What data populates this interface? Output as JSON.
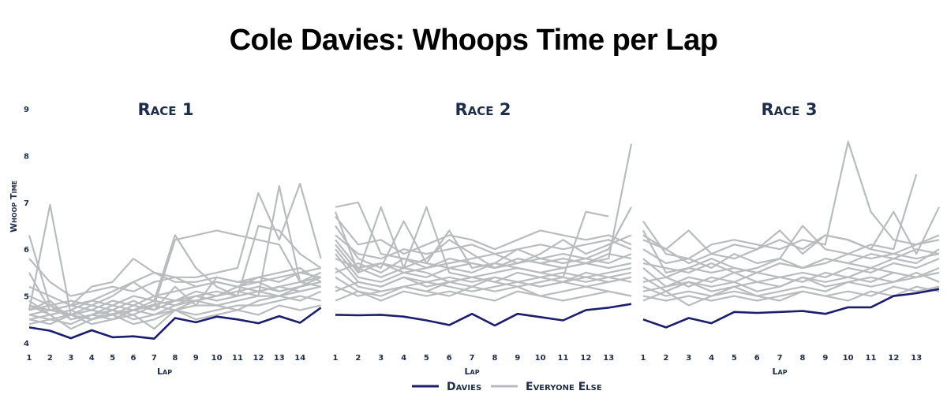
{
  "title": "Cole Davies: Whoops Time per Lap",
  "colors": {
    "davies": "#1b1e6e",
    "others": "#b9bcbf",
    "text": "#1e2d4a"
  },
  "legend": {
    "davies": "Davies",
    "others": "Everyone Else"
  },
  "chart_data": [
    {
      "type": "line",
      "title": "Race 1",
      "xlabel": "Lap",
      "ylabel": "Whoop Time",
      "ylim": [
        4,
        9
      ],
      "yticks": [
        4,
        5,
        6,
        7,
        8,
        9
      ],
      "x_ticks": [
        "1",
        "2",
        "3",
        "4",
        "5",
        "6",
        "7",
        "8",
        "9",
        "10",
        "11",
        "12",
        "13",
        "14"
      ],
      "davies": [
        4.33,
        4.26,
        4.1,
        4.27,
        4.12,
        4.14,
        4.09,
        4.53,
        4.44,
        4.56,
        4.5,
        4.42,
        4.57,
        4.43,
        4.75
      ],
      "others": [
        [
          4.7,
          6.95,
          4.6,
          4.5,
          4.62,
          4.7,
          4.82,
          4.9,
          4.9,
          5.0,
          5.1,
          5.0,
          7.35,
          5.3,
          5.4
        ],
        [
          6.3,
          4.8,
          4.5,
          4.6,
          4.7,
          4.6,
          4.8,
          6.2,
          6.3,
          6.4,
          6.3,
          6.2,
          6.1,
          5.3,
          5.5
        ],
        [
          5.8,
          5.3,
          5.0,
          5.1,
          5.2,
          5.1,
          5.3,
          5.4,
          5.4,
          5.5,
          5.6,
          7.2,
          6.2,
          7.4,
          5.8
        ],
        [
          5.2,
          5.0,
          4.8,
          4.9,
          4.8,
          5.0,
          4.9,
          6.3,
          5.6,
          5.2,
          5.0,
          6.5,
          6.4,
          5.9,
          5.6
        ],
        [
          4.6,
          4.5,
          4.4,
          4.6,
          4.5,
          4.7,
          4.6,
          4.8,
          4.9,
          5.0,
          5.1,
          5.2,
          5.1,
          5.2,
          5.3
        ],
        [
          4.5,
          4.6,
          4.3,
          4.5,
          4.7,
          4.5,
          4.6,
          4.7,
          4.8,
          4.8,
          4.9,
          5.0,
          5.0,
          4.9,
          5.1
        ],
        [
          4.8,
          4.7,
          4.6,
          4.7,
          4.6,
          4.8,
          4.7,
          4.9,
          5.0,
          4.9,
          5.0,
          5.1,
          5.2,
          5.1,
          5.2
        ],
        [
          4.9,
          4.6,
          4.7,
          4.5,
          4.6,
          4.4,
          4.5,
          4.7,
          4.6,
          4.7,
          4.8,
          4.8,
          4.9,
          5.0,
          4.9
        ],
        [
          4.4,
          4.5,
          4.6,
          4.4,
          4.5,
          4.6,
          4.3,
          4.7,
          4.5,
          4.6,
          4.7,
          4.6,
          4.8,
          4.7,
          4.8
        ],
        [
          5.0,
          4.8,
          4.9,
          4.8,
          5.0,
          5.3,
          5.0,
          5.1,
          5.2,
          5.3,
          5.2,
          5.4,
          5.3,
          5.5,
          5.4
        ],
        [
          4.7,
          4.9,
          4.5,
          4.6,
          4.8,
          4.7,
          4.9,
          4.8,
          5.0,
          5.1,
          5.0,
          5.1,
          5.2,
          5.3,
          5.2
        ],
        [
          4.6,
          4.7,
          4.8,
          4.7,
          4.9,
          4.8,
          5.0,
          4.9,
          5.1,
          5.0,
          5.2,
          5.1,
          5.0,
          5.2,
          5.3
        ],
        [
          4.5,
          4.4,
          4.6,
          4.8,
          4.7,
          4.9,
          4.7,
          5.2,
          4.8,
          5.4,
          5.3,
          5.3,
          5.4,
          5.5,
          5.6
        ],
        [
          4.8,
          4.6,
          4.7,
          4.9,
          5.1,
          5.3,
          5.5,
          5.4,
          5.2,
          5.3,
          5.2,
          5.3,
          5.1,
          5.2,
          5.4
        ],
        [
          5.5,
          4.7,
          4.8,
          5.2,
          5.3,
          5.8,
          5.5,
          5.3,
          5.3,
          5.4,
          5.3,
          5.4,
          5.5,
          5.6,
          5.3
        ],
        [
          4.7,
          4.8,
          4.6,
          4.7,
          4.6,
          4.7,
          4.8,
          4.7,
          4.9,
          4.8,
          4.7,
          4.9,
          5.0,
          5.1,
          5.2
        ]
      ]
    },
    {
      "type": "line",
      "title": "Race 2",
      "xlabel": "Lap",
      "ylabel": "Whoop Time",
      "ylim": [
        4,
        9
      ],
      "x_ticks": [
        "1",
        "2",
        "3",
        "4",
        "5",
        "6",
        "7",
        "8",
        "9",
        "10",
        "11",
        "12",
        "13"
      ],
      "davies": [
        4.6,
        4.59,
        4.6,
        4.56,
        4.48,
        4.38,
        4.62,
        4.37,
        4.62,
        4.55,
        4.48,
        4.7,
        4.75,
        4.83
      ],
      "others": [
        [
          6.9,
          7.0,
          5.9,
          5.8,
          5.7,
          5.6,
          5.7,
          5.6,
          5.8,
          5.7,
          5.6,
          5.7,
          5.8,
          8.25
        ],
        [
          6.8,
          5.5,
          6.9,
          5.6,
          6.9,
          5.5,
          5.4,
          5.5,
          5.6,
          5.5,
          5.4,
          6.8,
          6.7
        ],
        [
          6.5,
          5.8,
          5.6,
          6.6,
          5.7,
          6.4,
          5.6,
          5.7,
          6.0,
          5.8,
          5.7,
          5.8,
          6.0,
          6.9
        ],
        [
          6.2,
          5.6,
          5.4,
          5.6,
          5.5,
          5.3,
          5.4,
          5.3,
          5.2,
          5.3,
          5.4,
          5.3,
          5.4,
          5.3
        ],
        [
          5.9,
          5.3,
          5.2,
          5.4,
          5.3,
          5.4,
          5.3,
          5.4,
          5.3,
          5.2,
          5.3,
          5.4,
          5.3,
          5.4
        ],
        [
          5.6,
          5.2,
          5.1,
          5.2,
          5.1,
          5.0,
          5.2,
          5.1,
          5.2,
          5.0,
          5.1,
          5.2,
          5.1,
          5.0
        ],
        [
          5.4,
          5.1,
          4.9,
          5.1,
          5.0,
          5.1,
          5.0,
          4.9,
          5.1,
          5.0,
          4.9,
          5.0,
          5.1,
          5.0
        ],
        [
          6.0,
          5.4,
          5.3,
          5.5,
          5.4,
          5.6,
          5.5,
          5.7,
          5.6,
          5.5,
          5.6,
          5.7,
          5.6,
          5.7
        ],
        [
          5.8,
          5.6,
          5.7,
          5.5,
          5.6,
          5.8,
          5.7,
          5.6,
          5.8,
          5.7,
          5.8,
          5.7,
          5.9,
          5.8
        ],
        [
          6.3,
          5.9,
          5.8,
          6.0,
          5.9,
          6.0,
          6.1,
          5.9,
          6.0,
          6.1,
          6.0,
          6.1,
          6.2,
          6.0
        ],
        [
          5.2,
          5.0,
          5.1,
          5.2,
          5.3,
          5.2,
          5.1,
          5.2,
          5.3,
          5.2,
          5.3,
          5.2,
          5.3,
          5.4
        ],
        [
          4.9,
          5.1,
          5.0,
          5.2,
          5.1,
          5.3,
          5.2,
          5.4,
          5.3,
          5.4,
          5.5,
          5.4,
          5.5,
          5.6
        ],
        [
          6.7,
          6.1,
          6.2,
          5.9,
          6.1,
          6.3,
          6.2,
          6.0,
          6.2,
          6.4,
          6.3,
          6.2,
          6.3,
          6.1
        ],
        [
          5.5,
          5.7,
          5.5,
          5.8,
          5.6,
          5.7,
          5.8,
          5.9,
          5.7,
          5.8,
          5.9,
          5.8,
          5.7,
          5.9
        ],
        [
          5.1,
          5.3,
          5.2,
          5.4,
          5.2,
          5.3,
          5.4,
          5.3,
          5.5,
          5.4,
          5.3,
          5.5,
          5.4,
          5.5
        ],
        [
          6.1,
          5.5,
          5.7,
          5.6,
          5.8,
          6.2,
          5.9,
          5.6,
          5.7,
          5.9,
          6.2,
          5.9,
          6.1,
          6.3
        ]
      ]
    },
    {
      "type": "line",
      "title": "Race 3",
      "xlabel": "Lap",
      "ylabel": "Whoop Time",
      "ylim": [
        4,
        9
      ],
      "x_ticks": [
        "1",
        "2",
        "3",
        "4",
        "5",
        "6",
        "7",
        "8",
        "9",
        "10",
        "11",
        "12",
        "13"
      ],
      "davies": [
        4.5,
        4.33,
        4.53,
        4.42,
        4.66,
        4.64,
        4.66,
        4.68,
        4.62,
        4.76,
        4.76,
        5.0,
        5.06,
        5.15
      ],
      "others": [
        [
          6.6,
          5.9,
          5.8,
          6.1,
          6.2,
          6.1,
          6.0,
          6.2,
          6.1,
          8.3,
          6.8,
          6.2,
          6.1,
          6.3
        ],
        [
          6.3,
          6.0,
          6.4,
          5.9,
          6.1,
          6.0,
          6.2,
          6.0,
          6.3,
          6.2,
          6.0,
          6.8,
          5.9,
          6.9
        ],
        [
          6.0,
          5.7,
          5.8,
          5.6,
          5.9,
          5.7,
          5.8,
          6.5,
          6.0,
          5.9,
          6.1,
          6.0,
          7.6
        ],
        [
          5.8,
          5.4,
          5.6,
          5.5,
          5.6,
          5.5,
          5.7,
          5.6,
          5.8,
          5.7,
          5.9,
          5.8,
          6.0,
          5.9
        ],
        [
          5.6,
          5.2,
          5.4,
          5.3,
          5.5,
          5.3,
          5.4,
          5.5,
          5.4,
          5.6,
          5.5,
          5.7,
          5.6,
          5.8
        ],
        [
          5.4,
          5.1,
          5.3,
          5.2,
          5.3,
          5.1,
          5.2,
          5.4,
          5.3,
          5.4,
          5.3,
          5.5,
          5.4,
          5.6
        ],
        [
          5.2,
          5.0,
          5.1,
          5.0,
          5.2,
          5.0,
          5.1,
          5.2,
          5.1,
          5.3,
          5.2,
          5.3,
          5.4,
          5.5
        ],
        [
          5.0,
          4.9,
          5.0,
          4.9,
          5.0,
          4.9,
          5.0,
          5.1,
          5.0,
          5.1,
          5.0,
          5.2,
          5.1,
          5.2
        ],
        [
          6.4,
          5.5,
          5.6,
          5.8,
          5.6,
          5.5,
          5.7,
          5.6,
          5.8,
          5.7,
          5.6,
          5.8,
          5.7,
          6.0
        ],
        [
          5.7,
          5.6,
          5.5,
          5.7,
          5.5,
          5.6,
          5.8,
          5.6,
          5.7,
          5.9,
          5.8,
          5.9,
          5.8,
          5.9
        ],
        [
          5.3,
          5.4,
          5.2,
          5.4,
          5.3,
          5.5,
          5.4,
          5.3,
          5.5,
          5.4,
          5.6,
          5.5,
          5.4,
          5.5
        ],
        [
          5.1,
          5.2,
          5.3,
          5.1,
          5.2,
          5.3,
          5.2,
          5.4,
          5.2,
          5.3,
          5.4,
          5.3,
          5.5,
          5.3
        ],
        [
          6.2,
          6.0,
          5.7,
          5.9,
          5.8,
          6.0,
          6.4,
          5.9,
          6.3,
          6.2,
          6.0,
          5.9,
          6.1,
          6.2
        ],
        [
          4.9,
          5.1,
          4.8,
          5.0,
          5.1,
          5.0,
          4.9,
          5.1,
          5.0,
          4.9,
          5.1,
          5.0,
          5.2,
          5.1
        ]
      ]
    }
  ]
}
